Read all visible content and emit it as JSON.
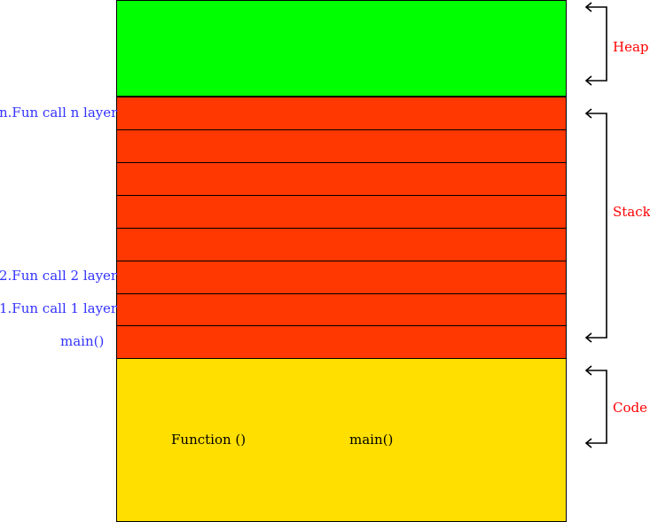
{
  "colors": {
    "heap": "#00ff00",
    "stack": "#ff3700",
    "code": "#ffdf00",
    "layer_label": "#3333ff",
    "region_label": "#ff0000",
    "border": "#000000",
    "bracket": "#000000"
  },
  "regions": {
    "heap": "Heap",
    "stack": "Stack",
    "code": "Code"
  },
  "stack_frames": [
    {
      "label": "n.Fun call n layer"
    },
    {
      "label": ""
    },
    {
      "label": ""
    },
    {
      "label": ""
    },
    {
      "label": ""
    },
    {
      "label": "2.Fun call 2 layer"
    },
    {
      "label": "1.Fun call 1 layer"
    },
    {
      "label": "main()"
    }
  ],
  "code_items": [
    "Function ()",
    "main()"
  ]
}
